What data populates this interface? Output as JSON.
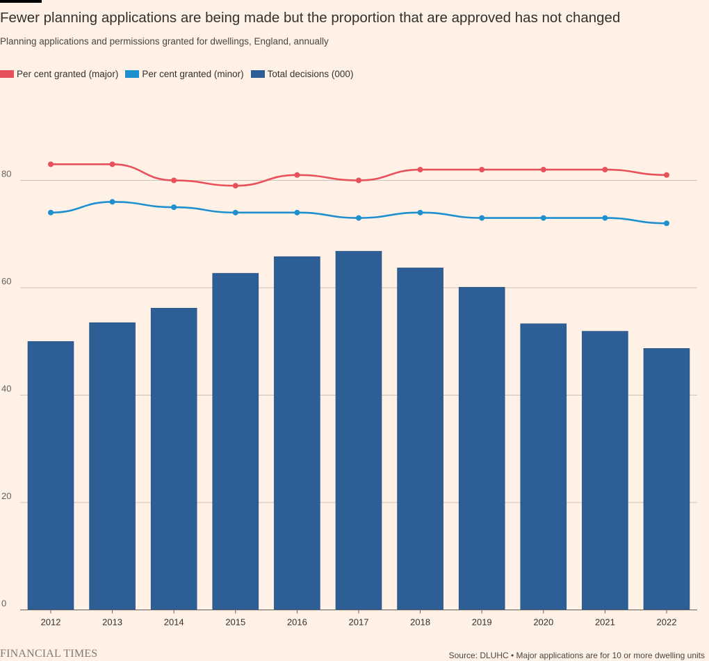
{
  "title": "Fewer planning applications are being made but the proportion that are approved has not changed",
  "subtitle": "Planning applications and permissions granted for dwellings, England, annually",
  "brand": "FINANCIAL TIMES",
  "source": "Source: DLUHC • Major applications are for 10 or more dwelling units",
  "colors": {
    "major": "#e8505b",
    "minor": "#1e8fcf",
    "bars": "#2d5e95",
    "background": "#fff1e5",
    "grid": "#ccc1b7"
  },
  "chart_data": {
    "type": "bar",
    "categories": [
      "2012",
      "2013",
      "2014",
      "2015",
      "2016",
      "2017",
      "2018",
      "2019",
      "2020",
      "2021",
      "2022"
    ],
    "series": [
      {
        "name": "Total decisions (000)",
        "type": "bar",
        "values": [
          50,
          53.5,
          56.2,
          62.7,
          65.8,
          66.8,
          63.7,
          60.1,
          53.3,
          51.9,
          48.7
        ]
      },
      {
        "name": "Per cent granted (major)",
        "type": "line",
        "values": [
          83,
          83,
          80,
          79,
          81,
          80,
          82,
          82,
          82,
          82,
          81
        ]
      },
      {
        "name": "Per cent granted (minor)",
        "type": "line",
        "values": [
          74,
          76,
          75,
          74,
          74,
          73,
          74,
          73,
          73,
          73,
          72
        ]
      }
    ],
    "yticks": [
      0,
      20,
      40,
      60,
      80
    ],
    "ylim": [
      0,
      100
    ],
    "grid": true,
    "legend_position": "top-left"
  }
}
